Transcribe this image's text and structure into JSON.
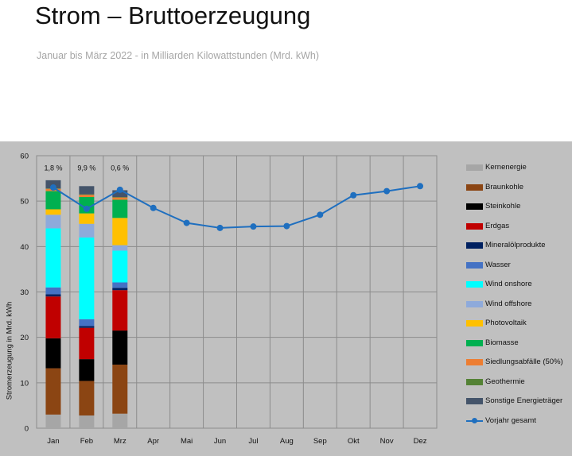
{
  "header": {
    "title": "Strom – Bruttoerzeugung",
    "subtitle": "Januar bis März 2022 - in Milliarden Kilowattstunden (Mrd. kWh)"
  },
  "chart_data": {
    "type": "bar",
    "title": "Strom – Bruttoerzeugung",
    "subtitle": "Januar bis März 2022 - in Milliarden Kilowattstunden (Mrd. kWh)",
    "ylabel": "Stromerzeugung  in Mrd. kWh",
    "xlabel": "",
    "ylim": [
      0,
      60
    ],
    "yticks": [
      0,
      10,
      20,
      30,
      40,
      50,
      60
    ],
    "categories": [
      "Jan",
      "Feb",
      "Mrz",
      "Apr",
      "Mai",
      "Jun",
      "Jul",
      "Aug",
      "Sep",
      "Okt",
      "Nov",
      "Dez"
    ],
    "grid": true,
    "legend_position": "right",
    "stacked": true,
    "series": [
      {
        "name": "Kernenergie",
        "color": "#a6a6a6",
        "values": [
          3.0,
          2.8,
          3.2,
          null,
          null,
          null,
          null,
          null,
          null,
          null,
          null,
          null
        ]
      },
      {
        "name": "Braunkohle",
        "color": "#8b4513",
        "values": [
          10.2,
          7.6,
          10.8,
          null,
          null,
          null,
          null,
          null,
          null,
          null,
          null,
          null
        ]
      },
      {
        "name": "Steinkohle",
        "color": "#000000",
        "values": [
          6.6,
          4.8,
          7.5,
          null,
          null,
          null,
          null,
          null,
          null,
          null,
          null,
          null
        ]
      },
      {
        "name": "Erdgas",
        "color": "#c00000",
        "values": [
          9.2,
          6.9,
          8.9,
          null,
          null,
          null,
          null,
          null,
          null,
          null,
          null,
          null
        ]
      },
      {
        "name": "Mineralölprodukte",
        "color": "#002060",
        "values": [
          0.5,
          0.4,
          0.5,
          null,
          null,
          null,
          null,
          null,
          null,
          null,
          null,
          null
        ]
      },
      {
        "name": "Wasser",
        "color": "#4472c4",
        "values": [
          1.5,
          1.5,
          1.2,
          null,
          null,
          null,
          null,
          null,
          null,
          null,
          null,
          null
        ]
      },
      {
        "name": "Wind onshore",
        "color": "#00ffff",
        "values": [
          13.0,
          18.0,
          7.0,
          null,
          null,
          null,
          null,
          null,
          null,
          null,
          null,
          null
        ]
      },
      {
        "name": "Wind offshore",
        "color": "#8eaadb",
        "values": [
          3.0,
          3.0,
          1.2,
          null,
          null,
          null,
          null,
          null,
          null,
          null,
          null,
          null
        ]
      },
      {
        "name": "Photovoltaik",
        "color": "#ffc000",
        "values": [
          1.2,
          2.3,
          6.0,
          null,
          null,
          null,
          null,
          null,
          null,
          null,
          null,
          null
        ]
      },
      {
        "name": "Biomasse",
        "color": "#00b050",
        "values": [
          4.0,
          3.6,
          4.0,
          null,
          null,
          null,
          null,
          null,
          null,
          null,
          null,
          null
        ]
      },
      {
        "name": "Siedlungsabfälle (50%)",
        "color": "#ed7d31",
        "values": [
          0.5,
          0.5,
          0.5,
          null,
          null,
          null,
          null,
          null,
          null,
          null,
          null,
          null
        ]
      },
      {
        "name": "Geothermie",
        "color": "#548235",
        "values": [
          0.1,
          0.1,
          0.1,
          null,
          null,
          null,
          null,
          null,
          null,
          null,
          null,
          null
        ]
      },
      {
        "name": "Sonstige Energieträger",
        "color": "#44546a",
        "values": [
          1.8,
          1.8,
          1.5,
          null,
          null,
          null,
          null,
          null,
          null,
          null,
          null,
          null
        ]
      }
    ],
    "line_series": {
      "name": "Vorjahr gesamt",
      "color": "#1f6fbf",
      "values": [
        53.0,
        48.3,
        52.5,
        48.5,
        45.2,
        44.1,
        44.4,
        44.5,
        47.0,
        51.3,
        52.2,
        53.3
      ]
    },
    "annotations": [
      {
        "category": "Jan",
        "text": "1,8 %"
      },
      {
        "category": "Feb",
        "text": "9,9 %"
      },
      {
        "category": "Mrz",
        "text": "0,6 %"
      }
    ]
  }
}
